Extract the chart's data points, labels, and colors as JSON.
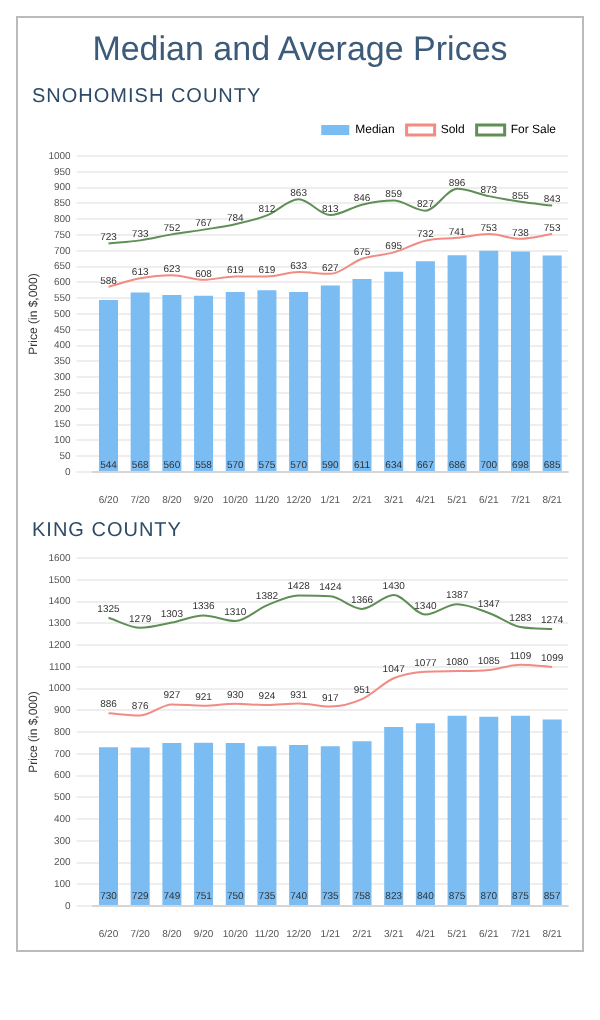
{
  "chart_data": [
    {
      "type": "bar",
      "title": "Median and Average Prices",
      "subtitle": "SNOHOMISH COUNTY",
      "ylabel": "Price (in $,000)",
      "categories": [
        "6/20",
        "7/20",
        "8/20",
        "9/20",
        "10/20",
        "11/20",
        "12/20",
        "1/21",
        "2/21",
        "3/21",
        "4/21",
        "5/21",
        "6/21",
        "7/21",
        "8/21"
      ],
      "series": [
        {
          "name": "Median",
          "color": "#7bbcf2",
          "values": [
            544,
            568,
            560,
            558,
            570,
            575,
            570,
            590,
            611,
            634,
            667,
            686,
            700,
            698,
            685
          ]
        },
        {
          "name": "Sold",
          "type": "line",
          "color": "#f28b82",
          "values": [
            586,
            613,
            623,
            608,
            619,
            619,
            633,
            627,
            675,
            695,
            732,
            741,
            753,
            738,
            753
          ]
        },
        {
          "name": "For Sale",
          "type": "line",
          "color": "#5f8f55",
          "values": [
            723,
            733,
            752,
            767,
            784,
            812,
            863,
            813,
            846,
            859,
            827,
            896,
            873,
            855,
            843
          ]
        }
      ],
      "ylim": [
        0,
        1000
      ],
      "yticks": [
        0,
        50,
        100,
        150,
        200,
        250,
        300,
        350,
        400,
        450,
        500,
        550,
        600,
        650,
        700,
        750,
        800,
        850,
        900,
        950,
        1000
      ],
      "grid": "y",
      "legend": "top right",
      "marker": "none",
      "data_labels": true
    },
    {
      "type": "bar",
      "subtitle": "KING COUNTY",
      "ylabel": "Price (in $,000)",
      "categories": [
        "6/20",
        "7/20",
        "8/20",
        "9/20",
        "10/20",
        "11/20",
        "12/20",
        "1/21",
        "2/21",
        "3/21",
        "4/21",
        "5/21",
        "6/21",
        "7/21",
        "8/21"
      ],
      "series": [
        {
          "color": "#7bbcf2",
          "values": [
            730,
            729,
            749,
            751,
            750,
            735,
            740,
            735,
            758,
            823,
            840,
            875,
            870,
            875,
            857
          ]
        },
        {
          "type": "line",
          "color": "#f28b82",
          "values": [
            886,
            876,
            927,
            921,
            930,
            924,
            931,
            917,
            951,
            1047,
            1077,
            1080,
            1085,
            1109,
            1099
          ]
        },
        {
          "type": "line",
          "color": "#5f8f55",
          "values": [
            1325,
            1279,
            1303,
            1336,
            1310,
            1382,
            1428,
            1424,
            1366,
            1430,
            1340,
            1387,
            1347,
            1283,
            1274
          ]
        }
      ],
      "ylim": [
        0,
        1600
      ],
      "yticks": [
        0,
        100,
        200,
        300,
        400,
        500,
        600,
        700,
        800,
        900,
        1000,
        1100,
        1200,
        1300,
        1400,
        1500,
        1600
      ],
      "grid": "y",
      "marker": "none",
      "data_labels": true
    }
  ]
}
